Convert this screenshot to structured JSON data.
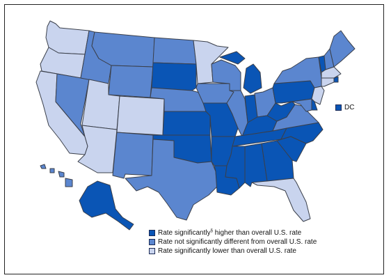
{
  "colors": {
    "high": "#0a55b5",
    "mid": "#5b86cf",
    "low": "#c9d4ee"
  },
  "states": [
    {
      "id": "WA",
      "cat": "low"
    },
    {
      "id": "OR",
      "cat": "low"
    },
    {
      "id": "CA",
      "cat": "low"
    },
    {
      "id": "NV",
      "cat": "mid"
    },
    {
      "id": "ID",
      "cat": "mid"
    },
    {
      "id": "MT",
      "cat": "mid"
    },
    {
      "id": "WY",
      "cat": "mid"
    },
    {
      "id": "UT",
      "cat": "low"
    },
    {
      "id": "CO",
      "cat": "low"
    },
    {
      "id": "AZ",
      "cat": "low"
    },
    {
      "id": "NM",
      "cat": "mid"
    },
    {
      "id": "ND",
      "cat": "mid"
    },
    {
      "id": "SD",
      "cat": "high"
    },
    {
      "id": "NE",
      "cat": "mid"
    },
    {
      "id": "KS",
      "cat": "high"
    },
    {
      "id": "OK",
      "cat": "high"
    },
    {
      "id": "TX",
      "cat": "mid"
    },
    {
      "id": "MN",
      "cat": "low"
    },
    {
      "id": "IA",
      "cat": "mid"
    },
    {
      "id": "MO",
      "cat": "high"
    },
    {
      "id": "AR",
      "cat": "high"
    },
    {
      "id": "LA",
      "cat": "high"
    },
    {
      "id": "WI",
      "cat": "mid"
    },
    {
      "id": "IL",
      "cat": "mid"
    },
    {
      "id": "MI",
      "cat": "high"
    },
    {
      "id": "IN",
      "cat": "high"
    },
    {
      "id": "OH",
      "cat": "mid"
    },
    {
      "id": "KY",
      "cat": "high"
    },
    {
      "id": "TN",
      "cat": "high"
    },
    {
      "id": "MS",
      "cat": "high"
    },
    {
      "id": "AL",
      "cat": "high"
    },
    {
      "id": "GA",
      "cat": "high"
    },
    {
      "id": "FL",
      "cat": "low"
    },
    {
      "id": "SC",
      "cat": "high"
    },
    {
      "id": "NC",
      "cat": "high"
    },
    {
      "id": "VA",
      "cat": "mid"
    },
    {
      "id": "WV",
      "cat": "high"
    },
    {
      "id": "PA",
      "cat": "high"
    },
    {
      "id": "NY",
      "cat": "mid"
    },
    {
      "id": "VT",
      "cat": "high"
    },
    {
      "id": "NH",
      "cat": "mid"
    },
    {
      "id": "ME",
      "cat": "mid"
    },
    {
      "id": "MA",
      "cat": "low"
    },
    {
      "id": "RI",
      "cat": "high"
    },
    {
      "id": "CT",
      "cat": "low"
    },
    {
      "id": "NJ",
      "cat": "low"
    },
    {
      "id": "DE",
      "cat": "high"
    },
    {
      "id": "MD",
      "cat": "mid"
    },
    {
      "id": "AK",
      "cat": "high"
    },
    {
      "id": "HI",
      "cat": "mid"
    }
  ],
  "dc": {
    "label": "DC",
    "cat": "high"
  },
  "legend": [
    {
      "cat": "high",
      "text_a": "Rate significantly",
      "sup": "§",
      "text_b": " higher than overall U.S. rate"
    },
    {
      "cat": "mid",
      "text_a": "Rate not significantly different from overall U.S. rate",
      "sup": "",
      "text_b": ""
    },
    {
      "cat": "low",
      "text_a": "Rate significantly lower than overall U.S. rate",
      "sup": "",
      "text_b": ""
    }
  ]
}
